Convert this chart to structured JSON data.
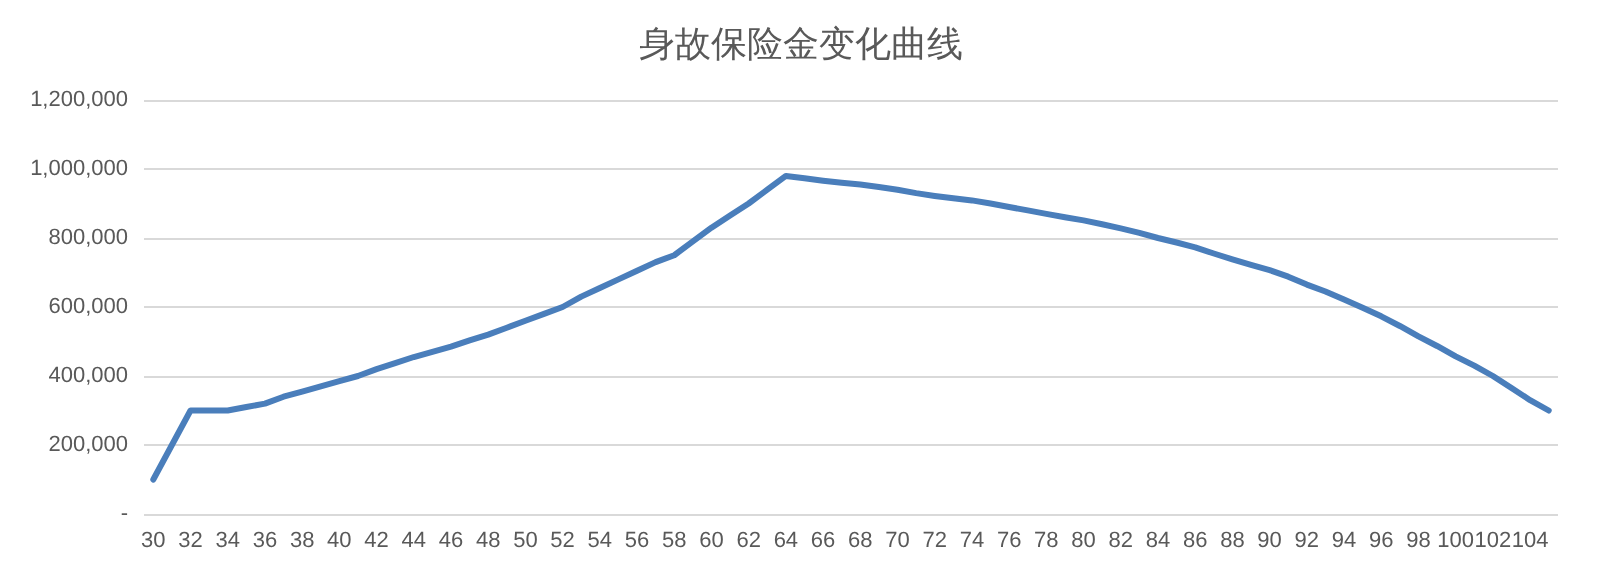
{
  "chart_data": {
    "type": "line",
    "title": "身故保险金变化曲线",
    "categories": [
      "30",
      null,
      "32",
      null,
      "34",
      null,
      "36",
      null,
      "38",
      null,
      "40",
      null,
      "42",
      null,
      "44",
      null,
      "46",
      null,
      "48",
      null,
      "50",
      null,
      "52",
      null,
      "54",
      null,
      "56",
      null,
      "58",
      null,
      "60",
      null,
      "62",
      null,
      "64",
      null,
      "66",
      null,
      "68",
      null,
      "70",
      null,
      "72",
      null,
      "74",
      null,
      "76",
      null,
      "78",
      null,
      "80",
      null,
      "82",
      null,
      "84",
      null,
      "86",
      null,
      "88",
      null,
      "90",
      null,
      "92",
      null,
      "94",
      null,
      "96",
      null,
      "98",
      null,
      "100",
      null,
      "102",
      null,
      "104",
      null
    ],
    "series": [
      {
        "color": "#4a7ebb",
        "values": [
          100000,
          200000,
          300000,
          300000,
          300000,
          310000,
          320000,
          340000,
          355000,
          370000,
          385000,
          400000,
          420000,
          437000,
          455000,
          470000,
          485000,
          503000,
          520000,
          540000,
          560000,
          580000,
          600000,
          630000,
          655000,
          680000,
          705000,
          730000,
          750000,
          790000,
          830000,
          865000,
          900000,
          940000,
          980000,
          973000,
          966000,
          960000,
          955000,
          948000,
          940000,
          930000,
          922000,
          915000,
          909000,
          900000,
          890000,
          880000,
          870000,
          860000,
          851000,
          840000,
          828000,
          815000,
          800000,
          787000,
          773000,
          755000,
          738000,
          722000,
          707000,
          688000,
          665000,
          645000,
          622000,
          598000,
          573000,
          545000,
          515000,
          487000,
          457000,
          430000,
          400000,
          365000,
          330000,
          300000
        ]
      }
    ],
    "ylim": [
      0,
      1200000
    ],
    "yticks": [
      {
        "value": 0,
        "label": "-"
      },
      {
        "value": 200000,
        "label": "200,000"
      },
      {
        "value": 400000,
        "label": "400,000"
      },
      {
        "value": 600000,
        "label": "600,000"
      },
      {
        "value": 800000,
        "label": "800,000"
      },
      {
        "value": 1000000,
        "label": "1,000,000"
      },
      {
        "value": 1200000,
        "label": "1,200,000"
      }
    ],
    "grid": "y",
    "marker": "none",
    "line_style": "solid"
  }
}
